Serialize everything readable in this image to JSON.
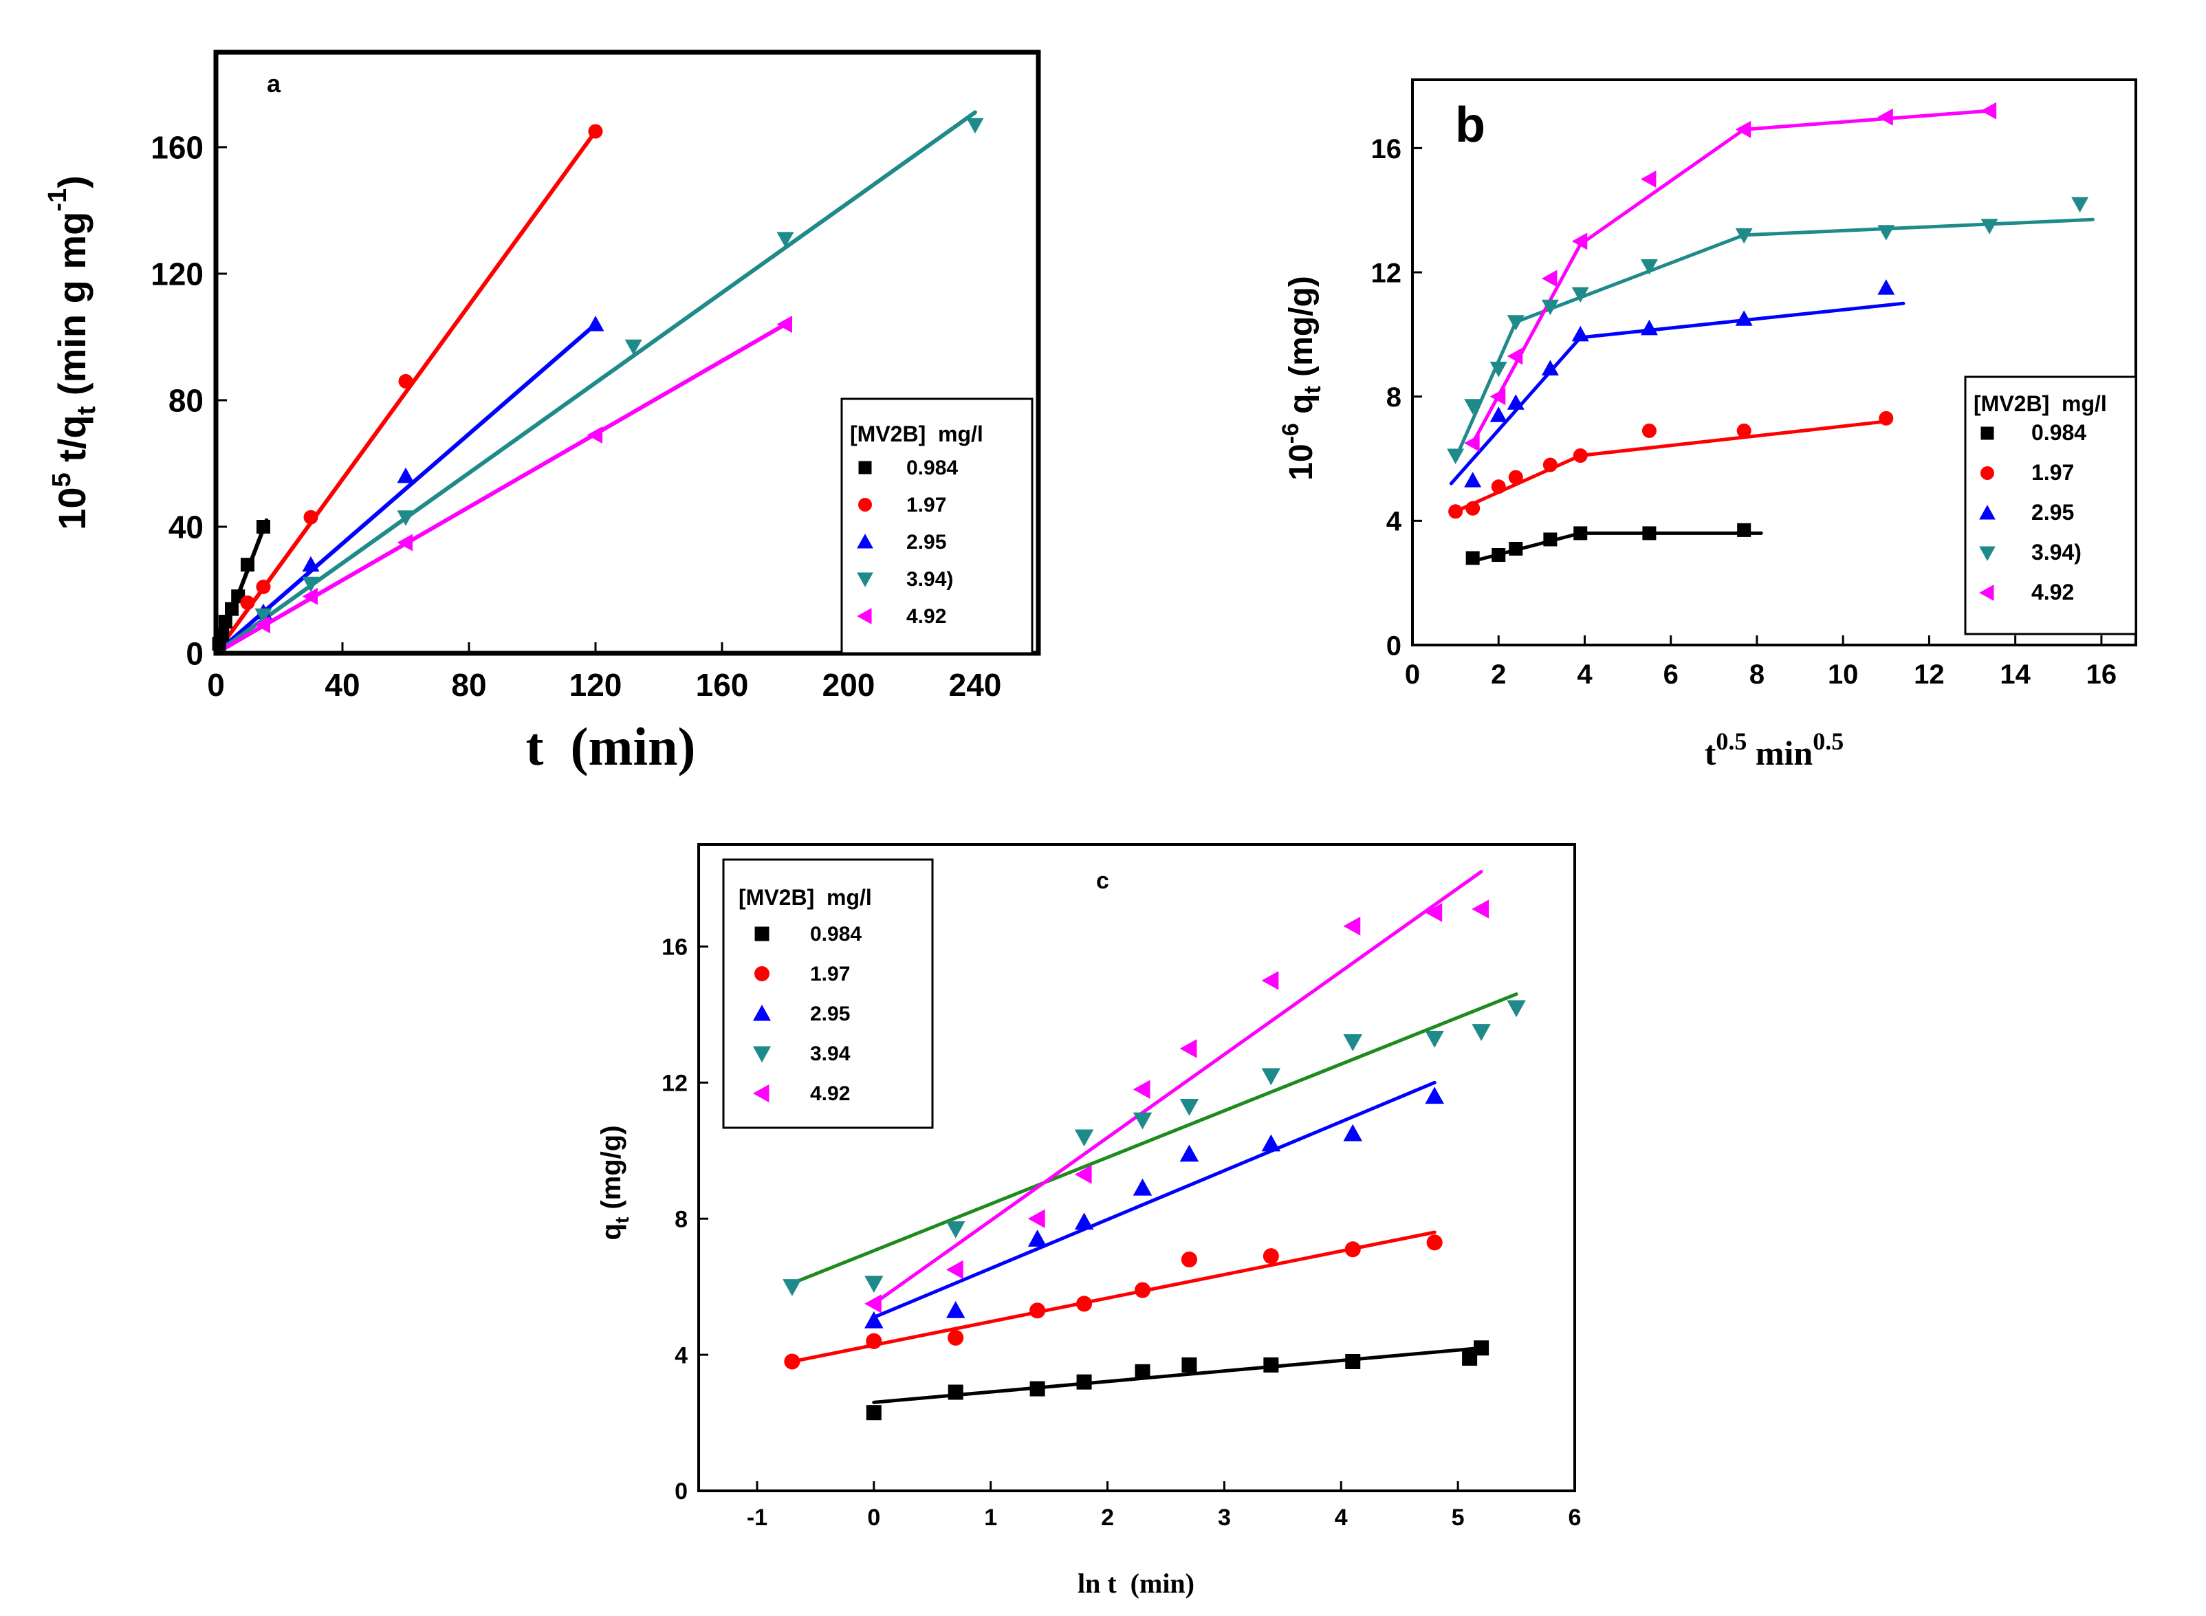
{
  "colors": {
    "black": "#000000",
    "red": "#ff0000",
    "blue": "#0000ff",
    "teal": "#1f8a8a",
    "magenta": "#ff00ff",
    "green": "#1f8a1f"
  },
  "chart_data": [
    {
      "id": "a",
      "type": "scatter",
      "panel_label": "a",
      "xlabel": "t  (min)",
      "ylabel": "10^5 t/q_t (min g mg^-1)",
      "xlim": [
        0,
        260
      ],
      "ylim": [
        0,
        190
      ],
      "xticks": [
        0,
        40,
        80,
        120,
        160,
        200,
        240
      ],
      "yticks": [
        0,
        40,
        80,
        120,
        160
      ],
      "legend": {
        "title": "[MV2B]  mg/l",
        "position": "right",
        "entries": [
          "0.984",
          "1.97",
          "2.95",
          "3.94)",
          "4.92"
        ]
      },
      "series": [
        {
          "name": "0.984",
          "color": "black",
          "marker": "square",
          "points": [
            [
              1,
              3
            ],
            [
              2,
              6
            ],
            [
              3,
              10
            ],
            [
              5,
              14
            ],
            [
              7,
              18
            ],
            [
              10,
              28
            ],
            [
              15,
              40
            ]
          ],
          "lines": [
            [
              [
                0,
                0
              ],
              [
                16,
                42
              ]
            ]
          ]
        },
        {
          "name": "1.97",
          "color": "red",
          "marker": "circle",
          "points": [
            [
              10,
              16
            ],
            [
              15,
              21
            ],
            [
              30,
              43
            ],
            [
              60,
              86
            ],
            [
              120,
              165
            ]
          ],
          "lines": [
            [
              [
                0,
                0
              ],
              [
                120,
                165
              ]
            ]
          ]
        },
        {
          "name": "2.95",
          "color": "blue",
          "marker": "triangle-up",
          "points": [
            [
              15,
              13
            ],
            [
              30,
              28
            ],
            [
              60,
              56
            ],
            [
              120,
              104
            ]
          ],
          "lines": [
            [
              [
                0,
                0
              ],
              [
                120,
                104
              ]
            ]
          ]
        },
        {
          "name": "3.94)",
          "color": "teal",
          "marker": "triangle-down",
          "points": [
            [
              15,
              12
            ],
            [
              30,
              22
            ],
            [
              60,
              43
            ],
            [
              132,
              97
            ],
            [
              180,
              131
            ],
            [
              240,
              167
            ]
          ],
          "lines": [
            [
              [
                0,
                0
              ],
              [
                240,
                171
              ]
            ]
          ]
        },
        {
          "name": "4.92",
          "color": "magenta",
          "marker": "triangle-left",
          "points": [
            [
              15,
              9
            ],
            [
              30,
              18
            ],
            [
              60,
              35
            ],
            [
              120,
              69
            ],
            [
              180,
              104
            ]
          ],
          "lines": [
            [
              [
                0,
                0
              ],
              [
                180,
                104
              ]
            ]
          ]
        }
      ]
    },
    {
      "id": "b",
      "type": "scatter",
      "panel_label": "b",
      "xlabel": "t^0.5  min^0.5",
      "ylabel": "10^-6 q_t  (mg/g)",
      "xlim": [
        0,
        16.8
      ],
      "ylim": [
        0,
        18.2
      ],
      "xticks": [
        0,
        2,
        4,
        6,
        8,
        10,
        12,
        14,
        16
      ],
      "yticks": [
        0,
        4,
        8,
        12,
        16
      ],
      "legend": {
        "title": "[MV2B]  mg/l",
        "position": "right",
        "entries": [
          "0.984",
          "1.97",
          "2.95",
          "3.94)",
          "4.92"
        ]
      },
      "series": [
        {
          "name": "0.984",
          "color": "black",
          "marker": "square",
          "points": [
            [
              1.4,
              2.8
            ],
            [
              2,
              2.9
            ],
            [
              2.4,
              3.1
            ],
            [
              3.2,
              3.4
            ],
            [
              3.9,
              3.6
            ],
            [
              5.5,
              3.6
            ],
            [
              7.7,
              3.7
            ]
          ],
          "lines": [
            [
              [
                1.4,
                2.7
              ],
              [
                3.9,
                3.6
              ]
            ],
            [
              [
                3.9,
                3.6
              ],
              [
                8.1,
                3.6
              ]
            ]
          ]
        },
        {
          "name": "1.97",
          "color": "red",
          "marker": "circle",
          "points": [
            [
              1,
              4.3
            ],
            [
              1.4,
              4.4
            ],
            [
              2,
              5.1
            ],
            [
              2.4,
              5.4
            ],
            [
              3.2,
              5.8
            ],
            [
              3.9,
              6.1
            ],
            [
              5.5,
              6.9
            ],
            [
              7.7,
              6.9
            ],
            [
              11,
              7.3
            ]
          ],
          "lines": [
            [
              [
                1,
                4.3
              ],
              [
                3.9,
                6.1
              ]
            ],
            [
              [
                3.9,
                6.1
              ],
              [
                11,
                7.2
              ]
            ]
          ]
        },
        {
          "name": "2.95",
          "color": "blue",
          "marker": "triangle-up",
          "points": [
            [
              1.4,
              5.3
            ],
            [
              2,
              7.4
            ],
            [
              2.4,
              7.8
            ],
            [
              3.2,
              8.9
            ],
            [
              3.9,
              10
            ],
            [
              5.5,
              10.2
            ],
            [
              7.7,
              10.5
            ],
            [
              11,
              11.5
            ]
          ],
          "lines": [
            [
              [
                0.9,
                5.2
              ],
              [
                3.9,
                9.9
              ]
            ],
            [
              [
                3.9,
                9.9
              ],
              [
                11.4,
                11
              ]
            ]
          ]
        },
        {
          "name": "3.94)",
          "color": "teal",
          "marker": "triangle-down",
          "points": [
            [
              1,
              6.1
            ],
            [
              1.4,
              7.7
            ],
            [
              2,
              8.9
            ],
            [
              2.4,
              10.4
            ],
            [
              3.2,
              10.9
            ],
            [
              3.9,
              11.3
            ],
            [
              5.5,
              12.2
            ],
            [
              7.7,
              13.2
            ],
            [
              11,
              13.3
            ],
            [
              13.4,
              13.5
            ],
            [
              15.5,
              14.2
            ]
          ],
          "lines": [
            [
              [
                1,
                6
              ],
              [
                2.4,
                10.4
              ]
            ],
            [
              [
                2.4,
                10.4
              ],
              [
                7.7,
                13.2
              ]
            ],
            [
              [
                7.7,
                13.2
              ],
              [
                15.8,
                13.7
              ]
            ]
          ]
        },
        {
          "name": "4.92",
          "color": "magenta",
          "marker": "triangle-left",
          "points": [
            [
              1.4,
              6.5
            ],
            [
              2,
              8
            ],
            [
              2.4,
              9.3
            ],
            [
              3.2,
              11.8
            ],
            [
              3.9,
              13
            ],
            [
              5.5,
              15
            ],
            [
              7.7,
              16.6
            ],
            [
              11,
              17
            ],
            [
              13.4,
              17.2
            ]
          ],
          "lines": [
            [
              [
                1.4,
                6.5
              ],
              [
                3.9,
                12.9
              ]
            ],
            [
              [
                3.9,
                12.9
              ],
              [
                7.7,
                16.6
              ]
            ],
            [
              [
                7.7,
                16.6
              ],
              [
                13.4,
                17.2
              ]
            ]
          ]
        }
      ]
    },
    {
      "id": "c",
      "type": "scatter",
      "panel_label": "c",
      "xlabel": "ln t  (min)",
      "ylabel": "q_t (mg/g)",
      "xlim": [
        -1.5,
        6
      ],
      "ylim": [
        0,
        19
      ],
      "xticks": [
        -1,
        0,
        1,
        2,
        3,
        4,
        5,
        6
      ],
      "yticks": [
        0,
        4,
        8,
        12,
        16
      ],
      "legend": {
        "title": "[MV2B]  mg/l",
        "position": "top-left",
        "entries": [
          "0.984",
          "1.97",
          "2.95",
          "3.94",
          "4.92"
        ]
      },
      "series": [
        {
          "name": "0.984",
          "color": "black",
          "marker": "square",
          "points": [
            [
              0,
              2.3
            ],
            [
              0.7,
              2.9
            ],
            [
              1.4,
              3
            ],
            [
              1.8,
              3.2
            ],
            [
              2.3,
              3.5
            ],
            [
              2.7,
              3.7
            ],
            [
              3.4,
              3.7
            ],
            [
              4.1,
              3.8
            ],
            [
              5.1,
              3.9
            ],
            [
              5.2,
              4.2
            ]
          ],
          "lines": [
            [
              [
                0,
                2.6
              ],
              [
                5.2,
                4.2
              ]
            ]
          ]
        },
        {
          "name": "1.97",
          "color": "red",
          "marker": "circle",
          "points": [
            [
              -0.7,
              3.8
            ],
            [
              0,
              4.4
            ],
            [
              0.7,
              4.5
            ],
            [
              1.4,
              5.3
            ],
            [
              1.8,
              5.5
            ],
            [
              2.3,
              5.9
            ],
            [
              2.7,
              6.8
            ],
            [
              3.4,
              6.9
            ],
            [
              4.1,
              7.1
            ],
            [
              4.8,
              7.3
            ]
          ],
          "lines": [
            [
              [
                -0.7,
                3.8
              ],
              [
                4.8,
                7.6
              ]
            ]
          ]
        },
        {
          "name": "2.95",
          "color": "blue",
          "marker": "triangle-up",
          "points": [
            [
              0,
              5
            ],
            [
              0.7,
              5.3
            ],
            [
              1.4,
              7.4
            ],
            [
              1.8,
              7.9
            ],
            [
              2.3,
              8.9
            ],
            [
              2.7,
              9.9
            ],
            [
              3.4,
              10.2
            ],
            [
              4.1,
              10.5
            ],
            [
              4.8,
              11.6
            ]
          ],
          "lines": [
            [
              [
                0,
                5.1
              ],
              [
                4.8,
                12
              ]
            ]
          ]
        },
        {
          "name": "3.94",
          "color": "teal",
          "marker": "triangle-down",
          "points": [
            [
              -0.7,
              6
            ],
            [
              0,
              6.1
            ],
            [
              0.7,
              7.7
            ],
            [
              1.8,
              10.4
            ],
            [
              2.3,
              10.9
            ],
            [
              2.7,
              11.3
            ],
            [
              3.4,
              12.2
            ],
            [
              4.1,
              13.2
            ],
            [
              4.8,
              13.3
            ],
            [
              5.2,
              13.5
            ],
            [
              5.5,
              14.2
            ]
          ],
          "lines": [
            [
              [
                -0.7,
                6.1
              ],
              [
                5.5,
                14.6
              ]
            ]
          ],
          "line_color": "green"
        },
        {
          "name": "4.92",
          "color": "magenta",
          "marker": "triangle-left",
          "points": [
            [
              0,
              5.5
            ],
            [
              0.7,
              6.5
            ],
            [
              1.4,
              8
            ],
            [
              1.8,
              9.3
            ],
            [
              2.3,
              11.8
            ],
            [
              2.7,
              13
            ],
            [
              3.4,
              15
            ],
            [
              4.1,
              16.6
            ],
            [
              4.8,
              17
            ],
            [
              5.2,
              17.1
            ]
          ],
          "lines": [
            [
              [
                0,
                5.5
              ],
              [
                5.2,
                18.2
              ]
            ]
          ]
        }
      ]
    }
  ]
}
